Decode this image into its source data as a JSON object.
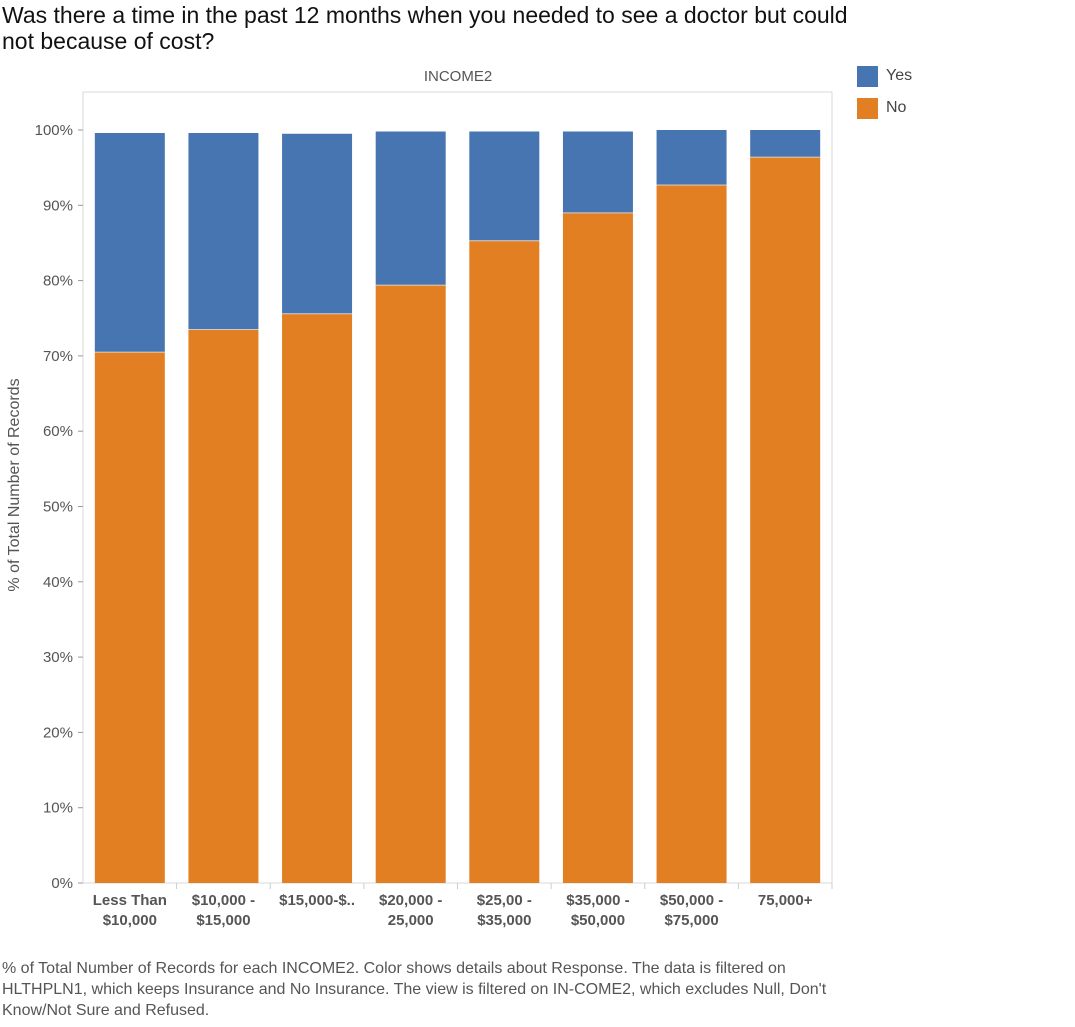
{
  "chart_data": {
    "type": "bar",
    "stacked": true,
    "title": "Was there a time in the past 12 months when you needed to see a doctor but could not because of cost?",
    "column_header": "INCOME2",
    "ylabel": "% of Total Number of Records",
    "ylim": [
      0,
      100
    ],
    "y_ticks": [
      "0%",
      "10%",
      "20%",
      "30%",
      "40%",
      "50%",
      "60%",
      "70%",
      "80%",
      "90%",
      "100%"
    ],
    "categories": [
      [
        "Less Than",
        "$10,000"
      ],
      [
        "$10,000 -",
        "$15,000"
      ],
      [
        "$15,000-$.."
      ],
      [
        "$20,000 -",
        "25,000"
      ],
      [
        "$25,00 -",
        "$35,000"
      ],
      [
        "$35,000 -",
        "$50,000"
      ],
      [
        "$50,000 -",
        "$75,000"
      ],
      [
        "75,000+"
      ]
    ],
    "series": [
      {
        "name": "No",
        "color": "#e37f23",
        "values": [
          70.5,
          73.5,
          75.6,
          79.4,
          85.3,
          89.0,
          92.7,
          96.4
        ]
      },
      {
        "name": "Yes",
        "color": "#4675b1",
        "values": [
          29.1,
          26.1,
          23.9,
          20.4,
          14.5,
          10.8,
          7.3,
          3.6
        ]
      }
    ],
    "legend_position": "top-right",
    "grid": false
  },
  "legend": {
    "items": [
      {
        "label": "Yes",
        "color": "#4675b1"
      },
      {
        "label": "No",
        "color": "#e37f23"
      }
    ]
  },
  "caption": "% of Total Number of Records for each INCOME2.  Color shows details about Response. The data is filtered on HLTHPLN1, which keeps Insurance and No Insurance. The view is filtered on IN-COME2, which excludes Null, Don't Know/Not Sure and Refused."
}
